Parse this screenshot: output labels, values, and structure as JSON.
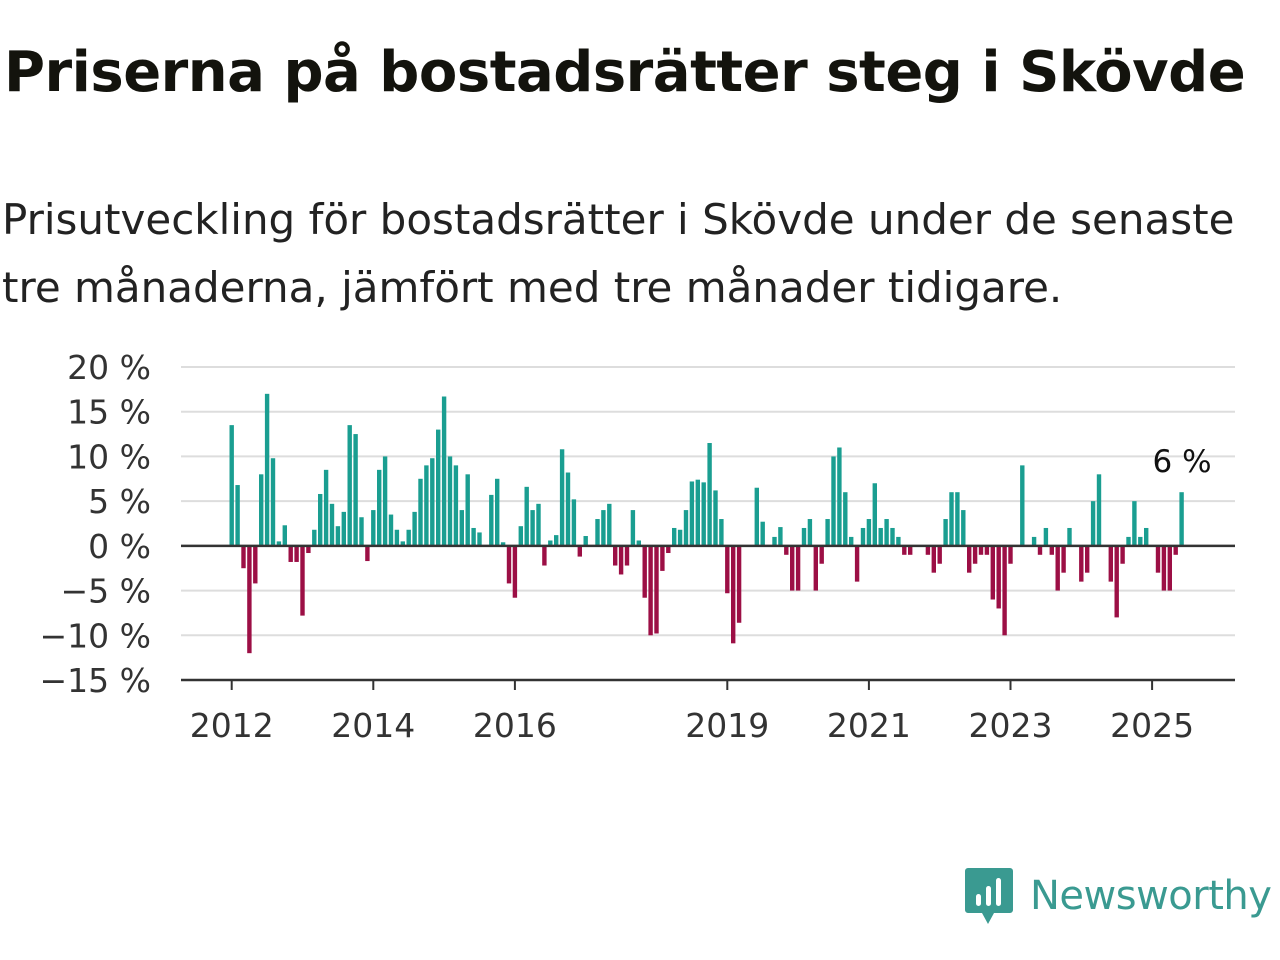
{
  "title": "Priserna på bostadsrätter steg i Skövde",
  "subtitle": "Prisutveckling för bostadsrätter i Skövde under de senaste tre månaderna, jämfört med tre månader tidigare.",
  "brand": {
    "name": "Newsworthy",
    "icon": "newsworthy-logo-icon",
    "color": "#3a9a91"
  },
  "colors": {
    "positive": "#1a9e91",
    "negative": "#9c0f45",
    "grid": "#dddddd",
    "axis": "#333333"
  },
  "chart_data": {
    "type": "bar",
    "title": "",
    "xlabel": "",
    "ylabel": "",
    "ylim": [
      -15,
      20
    ],
    "yticks": [
      20,
      15,
      10,
      5,
      0,
      -5,
      -10,
      -15
    ],
    "ytick_labels": [
      "20 %",
      "15 %",
      "10 %",
      "5 %",
      "0 %",
      "−5 %",
      "−10 %",
      "−15 %"
    ],
    "xticks": [
      "2012",
      "2014",
      "2016",
      "2019",
      "2021",
      "2023",
      "2025"
    ],
    "grid": true,
    "last_label": "6 %",
    "start": "2012-01",
    "frequency": "monthly",
    "series": [
      {
        "values": [
          13.5,
          6.8,
          -2.5,
          -12.0,
          -4.2,
          8.0,
          17.0,
          9.8,
          0.5,
          2.3,
          -1.8,
          -1.8,
          -7.8,
          -0.8,
          1.8,
          5.8,
          8.5,
          4.7,
          2.2,
          3.8,
          13.5,
          12.5,
          3.2,
          -1.7,
          4.0,
          8.5,
          10.0,
          3.5,
          1.8,
          0.5,
          1.8,
          3.8,
          7.5,
          9.0,
          9.8,
          13.0,
          16.7,
          10.0,
          9.0,
          4.0,
          8.0,
          2.0,
          1.5,
          0.0,
          5.7,
          7.5,
          0.4,
          -4.2,
          -5.8,
          2.2,
          6.6,
          4.0,
          4.7,
          -2.2,
          0.6,
          1.2,
          10.8,
          8.2,
          5.2,
          -1.2,
          1.1,
          0.0,
          3.0,
          4.0,
          4.7,
          -2.2,
          -3.2,
          -2.2,
          4.0,
          0.6,
          -5.8,
          -10.0,
          -9.8,
          -2.8,
          -0.8,
          2.0,
          1.8,
          4.0,
          7.2,
          7.4,
          7.1,
          11.5,
          6.2,
          3.0,
          -5.3,
          -10.9,
          -8.6,
          0.0,
          0.0,
          6.5,
          2.7,
          0.0,
          1.0,
          2.1,
          -1.0,
          -5.0,
          -5.0,
          2.0,
          3.0,
          -5.0,
          -2.0,
          3.0,
          10.0,
          11.0,
          6.0,
          1.0,
          -4.0,
          2.0,
          3.0,
          7.0,
          2.0,
          3.0,
          2.0,
          1.0,
          -1.0,
          -1.0,
          0.0,
          0.0,
          -1.0,
          -3.0,
          -2.0,
          3.0,
          6.0,
          6.0,
          4.0,
          -3.0,
          -2.0,
          -1.0,
          -1.0,
          -6.0,
          -7.0,
          -10.0,
          -2.0,
          0.0,
          9.0,
          0.0,
          1.0,
          -1.0,
          2.0,
          -1.0,
          -5.0,
          -3.0,
          2.0,
          0.0,
          -4.0,
          -3.0,
          5.0,
          8.0,
          0.0,
          -4.0,
          -8.0,
          -2.0,
          1.0,
          5.0,
          1.0,
          2.0,
          0.0,
          -3.0,
          -5.0,
          -5.0,
          -1.0,
          6.0
        ]
      }
    ]
  }
}
